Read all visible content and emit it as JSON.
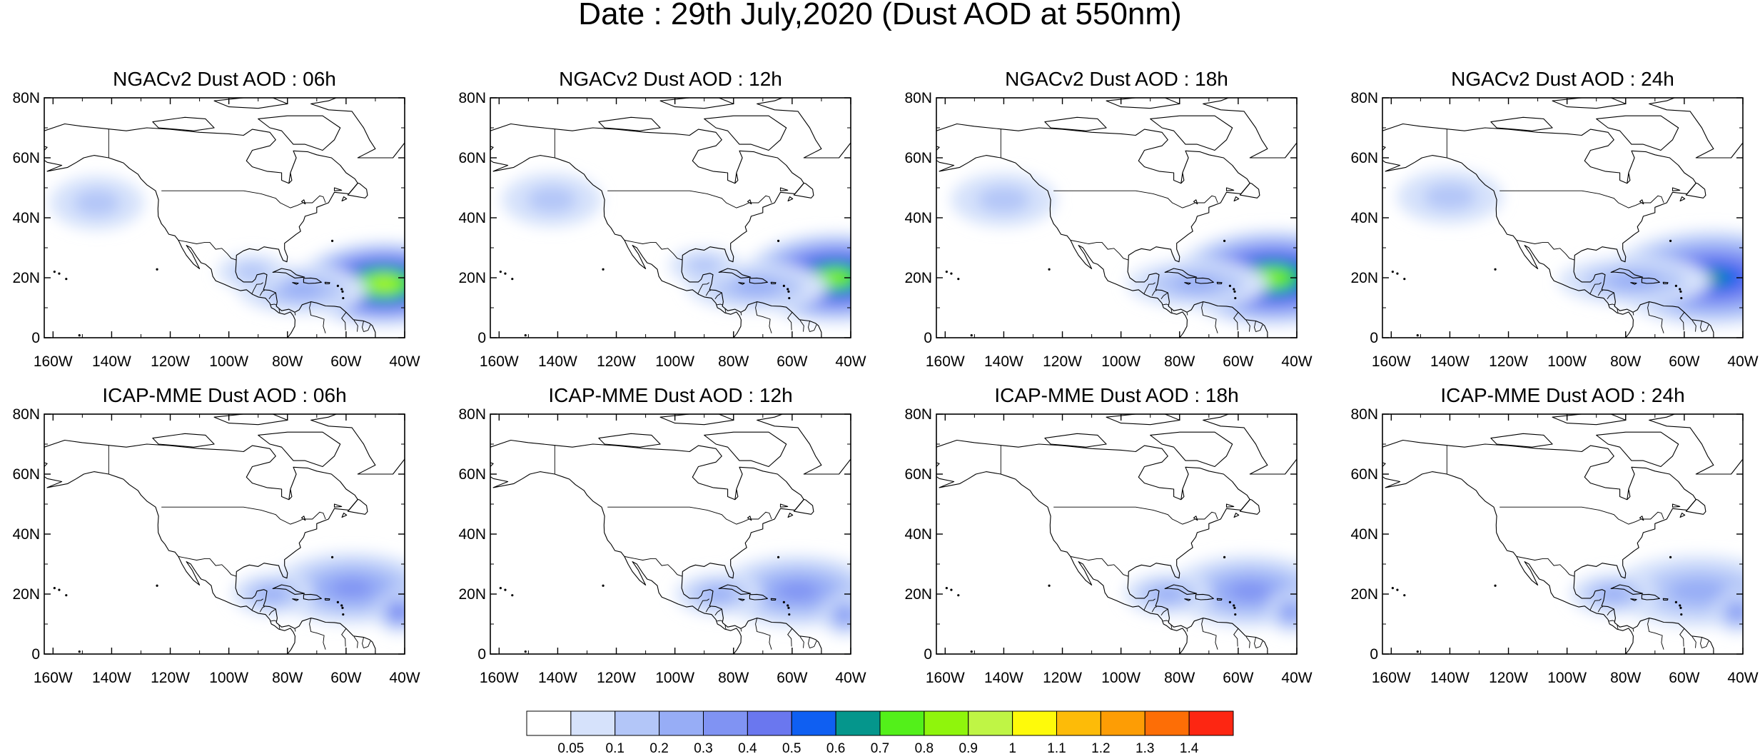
{
  "figure": {
    "title": "Date : 29th July,2020 (Dust AOD at 550nm)"
  },
  "axes": {
    "lon_ticks": [
      "160W",
      "140W",
      "120W",
      "100W",
      "80W",
      "60W",
      "40W"
    ],
    "lat_ticks": [
      "80N",
      "60N",
      "40N",
      "20N",
      "0"
    ],
    "lon_values": [
      -160,
      -140,
      -120,
      -100,
      -80,
      -60,
      -40
    ],
    "lat_values": [
      80,
      60,
      40,
      20,
      0
    ]
  },
  "colorbar": {
    "labels": [
      "0.05",
      "0.1",
      "0.2",
      "0.3",
      "0.4",
      "0.5",
      "0.6",
      "0.7",
      "0.8",
      "0.9",
      "1",
      "1.1",
      "1.2",
      "1.3",
      "1.4"
    ],
    "colors": [
      "#ffffff",
      "#d6e2fb",
      "#b3c6f8",
      "#97adf6",
      "#8093f3",
      "#6a77ef",
      "#0f5ff2",
      "#05968c",
      "#53f01a",
      "#8ff50c",
      "#bff545",
      "#fefa0a",
      "#fdbb08",
      "#fd9d05",
      "#fd6e06",
      "#fd2612"
    ]
  },
  "panels": [
    {
      "title": "NGACv2 Dust AOD : 06h",
      "model": "NGACv2",
      "hour": "06h",
      "plumes": [
        {
          "lon": -47,
          "lat": 18,
          "rlon": 30,
          "rlat": 14,
          "aod": 0.9
        },
        {
          "lon": -75,
          "lat": 16,
          "rlon": 22,
          "rlat": 8,
          "aod": 0.28
        },
        {
          "lon": -92,
          "lat": 22,
          "rlon": 12,
          "rlat": 6,
          "aod": 0.15
        },
        {
          "lon": -145,
          "lat": 45,
          "rlon": 16,
          "rlat": 9,
          "aod": 0.12
        }
      ]
    },
    {
      "title": "NGACv2 Dust AOD : 12h",
      "model": "NGACv2",
      "hour": "12h",
      "plumes": [
        {
          "lon": -45,
          "lat": 20,
          "rlon": 32,
          "rlat": 15,
          "aod": 0.8
        },
        {
          "lon": -72,
          "lat": 17,
          "rlon": 24,
          "rlat": 8,
          "aod": 0.26
        },
        {
          "lon": -90,
          "lat": 24,
          "rlon": 12,
          "rlat": 6,
          "aod": 0.14
        },
        {
          "lon": -142,
          "lat": 46,
          "rlon": 17,
          "rlat": 9,
          "aod": 0.1
        }
      ]
    },
    {
      "title": "NGACv2 Dust AOD : 18h",
      "model": "NGACv2",
      "hour": "18h",
      "plumes": [
        {
          "lon": -48,
          "lat": 20,
          "rlon": 34,
          "rlat": 16,
          "aod": 0.8
        },
        {
          "lon": -74,
          "lat": 18,
          "rlon": 24,
          "rlat": 8,
          "aod": 0.25
        },
        {
          "lon": -140,
          "lat": 46,
          "rlon": 18,
          "rlat": 9,
          "aod": 0.1
        }
      ]
    },
    {
      "title": "NGACv2 Dust AOD : 24h",
      "model": "NGACv2",
      "hour": "24h",
      "plumes": [
        {
          "lon": -50,
          "lat": 20,
          "rlon": 36,
          "rlat": 16,
          "aod": 0.65
        },
        {
          "lon": -77,
          "lat": 19,
          "rlon": 26,
          "rlat": 8,
          "aod": 0.26
        },
        {
          "lon": -140,
          "lat": 47,
          "rlon": 18,
          "rlat": 9,
          "aod": 0.1
        }
      ]
    },
    {
      "title": "ICAP-MME Dust AOD : 06h",
      "model": "ICAP-MME",
      "hour": "06h",
      "plumes": [
        {
          "lon": -58,
          "lat": 22,
          "rlon": 28,
          "rlat": 12,
          "aod": 0.35
        },
        {
          "lon": -42,
          "lat": 14,
          "rlon": 8,
          "rlat": 7,
          "aod": 0.4
        },
        {
          "lon": -85,
          "lat": 20,
          "rlon": 14,
          "rlat": 7,
          "aod": 0.25
        }
      ]
    },
    {
      "title": "ICAP-MME Dust AOD : 12h",
      "model": "ICAP-MME",
      "hour": "12h",
      "plumes": [
        {
          "lon": -58,
          "lat": 21,
          "rlon": 28,
          "rlat": 12,
          "aod": 0.33
        },
        {
          "lon": -42,
          "lat": 13,
          "rlon": 8,
          "rlat": 7,
          "aod": 0.38
        },
        {
          "lon": -85,
          "lat": 20,
          "rlon": 15,
          "rlat": 7,
          "aod": 0.24
        }
      ]
    },
    {
      "title": "ICAP-MME Dust AOD : 18h",
      "model": "ICAP-MME",
      "hour": "18h",
      "plumes": [
        {
          "lon": -56,
          "lat": 21,
          "rlon": 28,
          "rlat": 12,
          "aod": 0.3
        },
        {
          "lon": -42,
          "lat": 14,
          "rlon": 8,
          "rlat": 7,
          "aod": 0.35
        },
        {
          "lon": -84,
          "lat": 20,
          "rlon": 15,
          "rlat": 7,
          "aod": 0.22
        }
      ]
    },
    {
      "title": "ICAP-MME Dust AOD : 24h",
      "model": "ICAP-MME",
      "hour": "24h",
      "plumes": [
        {
          "lon": -55,
          "lat": 21,
          "rlon": 30,
          "rlat": 12,
          "aod": 0.28
        },
        {
          "lon": -42,
          "lat": 14,
          "rlon": 8,
          "rlat": 7,
          "aod": 0.3
        },
        {
          "lon": -84,
          "lat": 20,
          "rlon": 15,
          "rlat": 7,
          "aod": 0.2
        }
      ]
    }
  ]
}
